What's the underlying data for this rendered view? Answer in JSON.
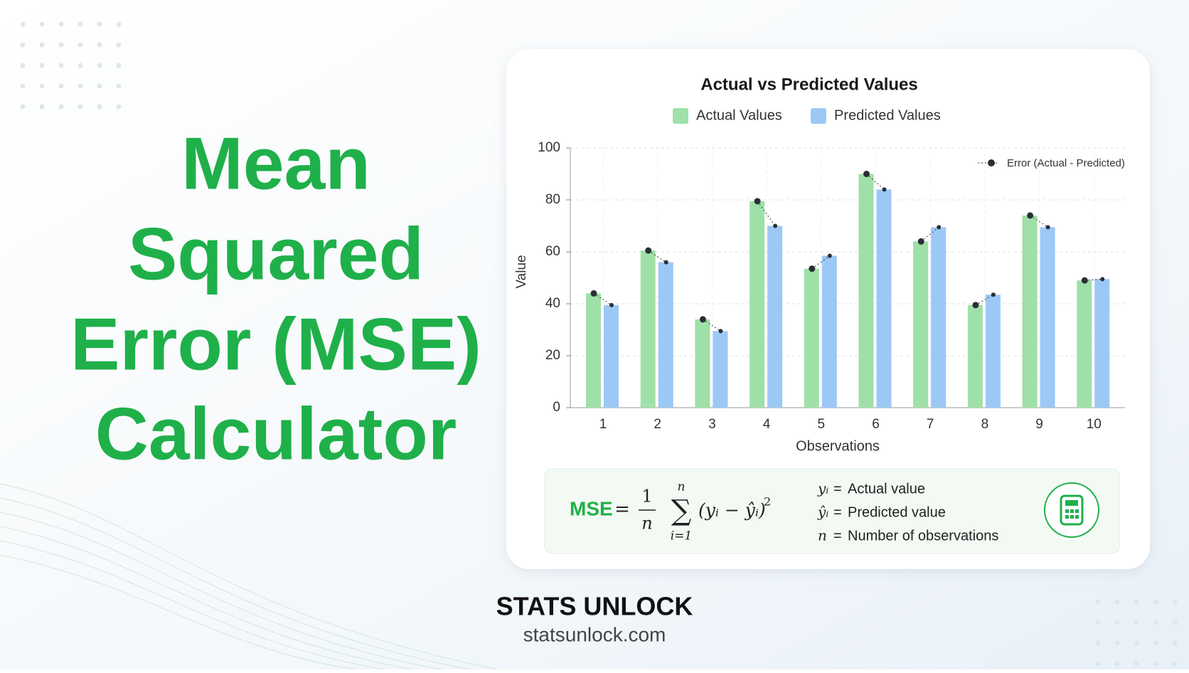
{
  "header": {
    "title_lines": [
      "Mean",
      "Squared",
      "Error (MSE)",
      "Calculator"
    ]
  },
  "chart_data": {
    "type": "bar",
    "title": "Actual vs Predicted Values",
    "categories": [
      "1",
      "2",
      "3",
      "4",
      "5",
      "6",
      "7",
      "8",
      "9",
      "10"
    ],
    "series": [
      {
        "name": "Actual Values",
        "color": "#9fe0a8",
        "values": [
          44,
          60.5,
          34,
          79.5,
          53.5,
          90,
          64,
          39.5,
          74,
          49
        ]
      },
      {
        "name": "Predicted Values",
        "color": "#9cc8f5",
        "values": [
          39.5,
          56,
          29.5,
          70,
          58.5,
          84,
          69.5,
          43.5,
          69.5,
          49.5
        ]
      }
    ],
    "error_legend": "Error (Actual - Predicted)",
    "xlabel": "Observations",
    "ylabel": "Value",
    "ylim": [
      0,
      100
    ],
    "yticks": [
      0,
      20,
      40,
      60,
      80,
      100
    ],
    "grid": true,
    "legend": "top"
  },
  "formula": {
    "lhs": "MSE",
    "equals": "=",
    "numerator": "1",
    "denominator": "n",
    "sum": "∑",
    "sum_top": "n",
    "sum_bottom": "i=1",
    "term": "(yᵢ − ŷᵢ)",
    "exponent": "2",
    "definitions": [
      {
        "symbol": "yᵢ",
        "equals": "=",
        "text": "Actual value"
      },
      {
        "symbol": "ŷᵢ",
        "equals": "=",
        "text": "Predicted value"
      },
      {
        "symbol": "n",
        "equals": "=",
        "text": "Number of observations"
      }
    ]
  },
  "footer": {
    "brand": "STATS UNLOCK",
    "url": "statsunlock.com"
  }
}
